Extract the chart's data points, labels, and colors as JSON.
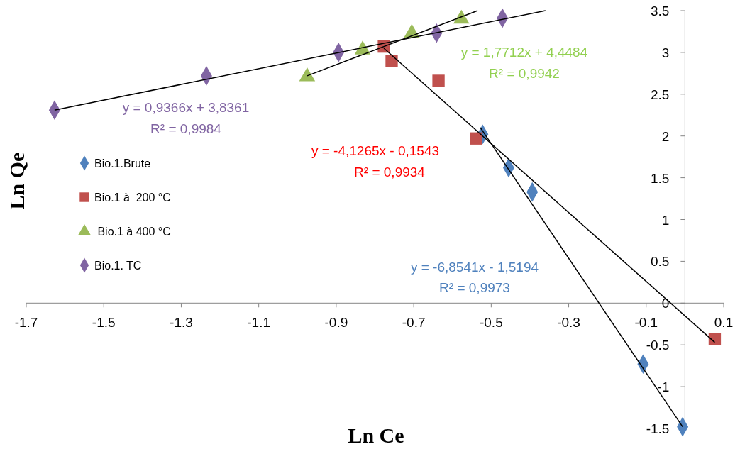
{
  "chart_data": {
    "type": "scatter",
    "xlabel": "Ln Ce",
    "ylabel": "Ln Qe",
    "xlim": [
      -1.7,
      0.1
    ],
    "ylim": [
      -1.5,
      3.5
    ],
    "xticks": [
      -1.7,
      -1.5,
      -1.3,
      -1.1,
      -0.9,
      -0.7,
      -0.5,
      -0.3,
      -0.1,
      0.1
    ],
    "yticks": [
      -1.5,
      -1,
      -0.5,
      0,
      0.5,
      1,
      1.5,
      2,
      2.5,
      3,
      3.5
    ],
    "grid": false,
    "legend": "left",
    "series": [
      {
        "name": "Bio.1.Brute",
        "color": "#4f81bd",
        "marker": "diamond",
        "x": [
          -0.522,
          -0.455,
          -0.394,
          -0.108,
          -0.006
        ],
        "values": [
          2.02,
          1.62,
          1.33,
          -0.73,
          -1.48
        ]
      },
      {
        "name": "Bio.1 à  200 °C",
        "color": "#c0504d",
        "marker": "square",
        "x": [
          -0.777,
          -0.757,
          -0.636,
          -0.539,
          0.077
        ],
        "values": [
          3.07,
          2.9,
          2.66,
          1.97,
          -0.43
        ]
      },
      {
        "name": " Bio.1 à 400 °C",
        "color": "#9bbb59",
        "marker": "triangle",
        "x": [
          -0.975,
          -0.832,
          -0.705,
          -0.577
        ],
        "values": [
          2.71,
          3.03,
          3.23,
          3.4
        ]
      },
      {
        "name": "Bio.1. TC",
        "color": "#8064a2",
        "marker": "diamond",
        "x": [
          -1.627,
          -1.235,
          -0.894,
          -0.641,
          -0.471
        ],
        "values": [
          2.31,
          2.72,
          3.0,
          3.23,
          3.41
        ]
      },
      {
        "type": "line",
        "color": "#000000",
        "marker": "none",
        "x": [
          -0.528,
          -0.006
        ],
        "values": [
          2.1,
          -1.48
        ]
      },
      {
        "type": "line",
        "color": "#000000",
        "marker": "none",
        "x": [
          -0.777,
          0.077
        ],
        "values": [
          3.05,
          -0.47
        ]
      },
      {
        "type": "line",
        "color": "#000000",
        "marker": "none",
        "x": [
          -0.975,
          -0.535
        ],
        "values": [
          2.72,
          3.5
        ]
      },
      {
        "type": "line",
        "color": "#000000",
        "marker": "none",
        "x": [
          -1.627,
          -0.36
        ],
        "values": [
          2.31,
          3.5
        ]
      }
    ],
    "annotations": [
      "y = -6,8541x - 1,5194",
      "R² = 0,9973",
      "y = -4,1265x - 0,1543",
      "R² = 0,9934",
      "y = 1,7712x + 4,4484",
      "R² = 0,9942",
      "y = 0,9366x + 3,8361",
      "R² = 0,9984"
    ]
  }
}
